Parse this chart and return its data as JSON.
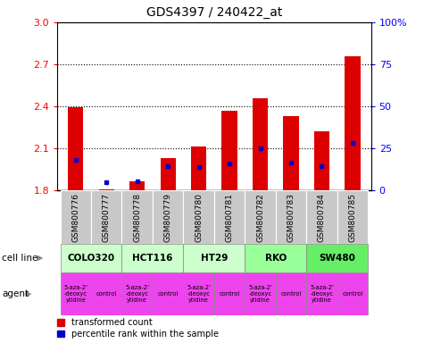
{
  "title": "GDS4397 / 240422_at",
  "samples": [
    "GSM800776",
    "GSM800777",
    "GSM800778",
    "GSM800779",
    "GSM800780",
    "GSM800781",
    "GSM800782",
    "GSM800783",
    "GSM800784",
    "GSM800785"
  ],
  "transformed_count": [
    2.395,
    1.81,
    1.865,
    2.03,
    2.115,
    2.37,
    2.455,
    2.33,
    2.22,
    2.755
  ],
  "percentile_positions": [
    2.02,
    1.855,
    1.865,
    1.975,
    1.965,
    1.995,
    2.1,
    2.0,
    1.975,
    2.14
  ],
  "ymin": 1.8,
  "ymax": 3.0,
  "yticks": [
    1.8,
    2.1,
    2.4,
    2.7,
    3.0
  ],
  "right_yticks": [
    0,
    25,
    50,
    75,
    100
  ],
  "bar_color": "#dd0000",
  "percentile_color": "#0000cc",
  "dotted_yticks": [
    2.1,
    2.4,
    2.7
  ],
  "bar_width": 0.5,
  "tick_bg": "#c8c8c8",
  "cl_groups": [
    {
      "name": "COLO320",
      "cols": [
        0,
        1
      ],
      "color": "#ccffcc"
    },
    {
      "name": "HCT116",
      "cols": [
        2,
        3
      ],
      "color": "#ccffcc"
    },
    {
      "name": "HT29",
      "cols": [
        4,
        5
      ],
      "color": "#ccffcc"
    },
    {
      "name": "RKO",
      "cols": [
        6,
        7
      ],
      "color": "#99ff99"
    },
    {
      "name": "SW480",
      "cols": [
        8,
        9
      ],
      "color": "#66ee66"
    }
  ],
  "agent_names": [
    "5-aza-2'\n-deoxyc\nytidine",
    "control",
    "5-aza-2'\n-deoxyc\nytidine",
    "control",
    "5-aza-2'\n-deoxyc\nytidine",
    "control",
    "5-aza-2'\n-deoxyc\nytidine",
    "control",
    "5-aza-2'\n-deoxyc\nytidine",
    "control"
  ],
  "agent_color": "#ee44ee",
  "legend_red": "transformed count",
  "legend_blue": "percentile rank within the sample"
}
